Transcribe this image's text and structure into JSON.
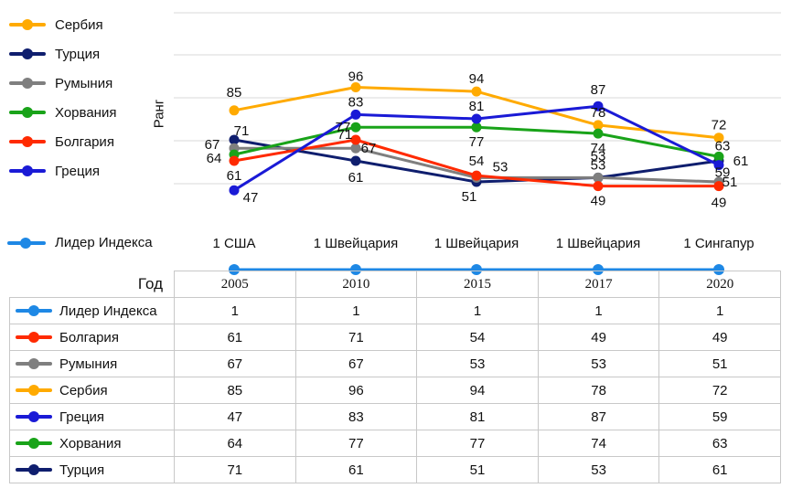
{
  "chart_data": {
    "type": "line",
    "ylabel": "Ранг",
    "x_field_label": "Год",
    "years": [
      "2005",
      "2010",
      "2015",
      "2017",
      "2020"
    ],
    "y_inverted": true,
    "grid": true,
    "legend_placement": "left",
    "series": [
      {
        "name": "Сербия",
        "color": "#ffaa00",
        "values": [
          85,
          96,
          94,
          78,
          72
        ]
      },
      {
        "name": "Турция",
        "color": "#0f1e6e",
        "values": [
          71,
          61,
          51,
          53,
          61
        ]
      },
      {
        "name": "Румыния",
        "color": "#7f7f7f",
        "values": [
          67,
          67,
          53,
          53,
          51
        ]
      },
      {
        "name": "Хорвания",
        "color": "#19a319",
        "values": [
          64,
          77,
          77,
          74,
          63
        ]
      },
      {
        "name": "Болгария",
        "color": "#ff2a00",
        "values": [
          61,
          71,
          54,
          49,
          49
        ]
      },
      {
        "name": "Греция",
        "color": "#1a1ad6",
        "values": [
          47,
          83,
          81,
          87,
          59
        ]
      }
    ],
    "leader": {
      "name": "Лидер Индекса",
      "color": "#1e88e5",
      "values": [
        1,
        1,
        1,
        1,
        1
      ],
      "labels": [
        "1 США",
        "1 Швейцария",
        "1 Швейцария",
        "1 Швейцария",
        "1 Сингапур"
      ]
    },
    "table": {
      "header": "Год",
      "rows": [
        {
          "name": "Лидер Индекса",
          "color": "#1e88e5",
          "values": [
            "1",
            "1",
            "1",
            "1",
            "1"
          ]
        },
        {
          "name": "Болгария",
          "color": "#ff2a00",
          "values": [
            "61",
            "71",
            "54",
            "49",
            "49"
          ]
        },
        {
          "name": "Румыния",
          "color": "#7f7f7f",
          "values": [
            "67",
            "67",
            "53",
            "53",
            "51"
          ]
        },
        {
          "name": "Сербия",
          "color": "#ffaa00",
          "values": [
            "85",
            "96",
            "94",
            "78",
            "72"
          ]
        },
        {
          "name": "Греция",
          "color": "#1a1ad6",
          "values": [
            "47",
            "83",
            "81",
            "87",
            "59"
          ]
        },
        {
          "name": "Хорвания",
          "color": "#19a319",
          "values": [
            "64",
            "77",
            "77",
            "74",
            "63"
          ]
        },
        {
          "name": "Турция",
          "color": "#0f1e6e",
          "values": [
            "71",
            "61",
            "51",
            "53",
            "61"
          ]
        }
      ]
    }
  }
}
